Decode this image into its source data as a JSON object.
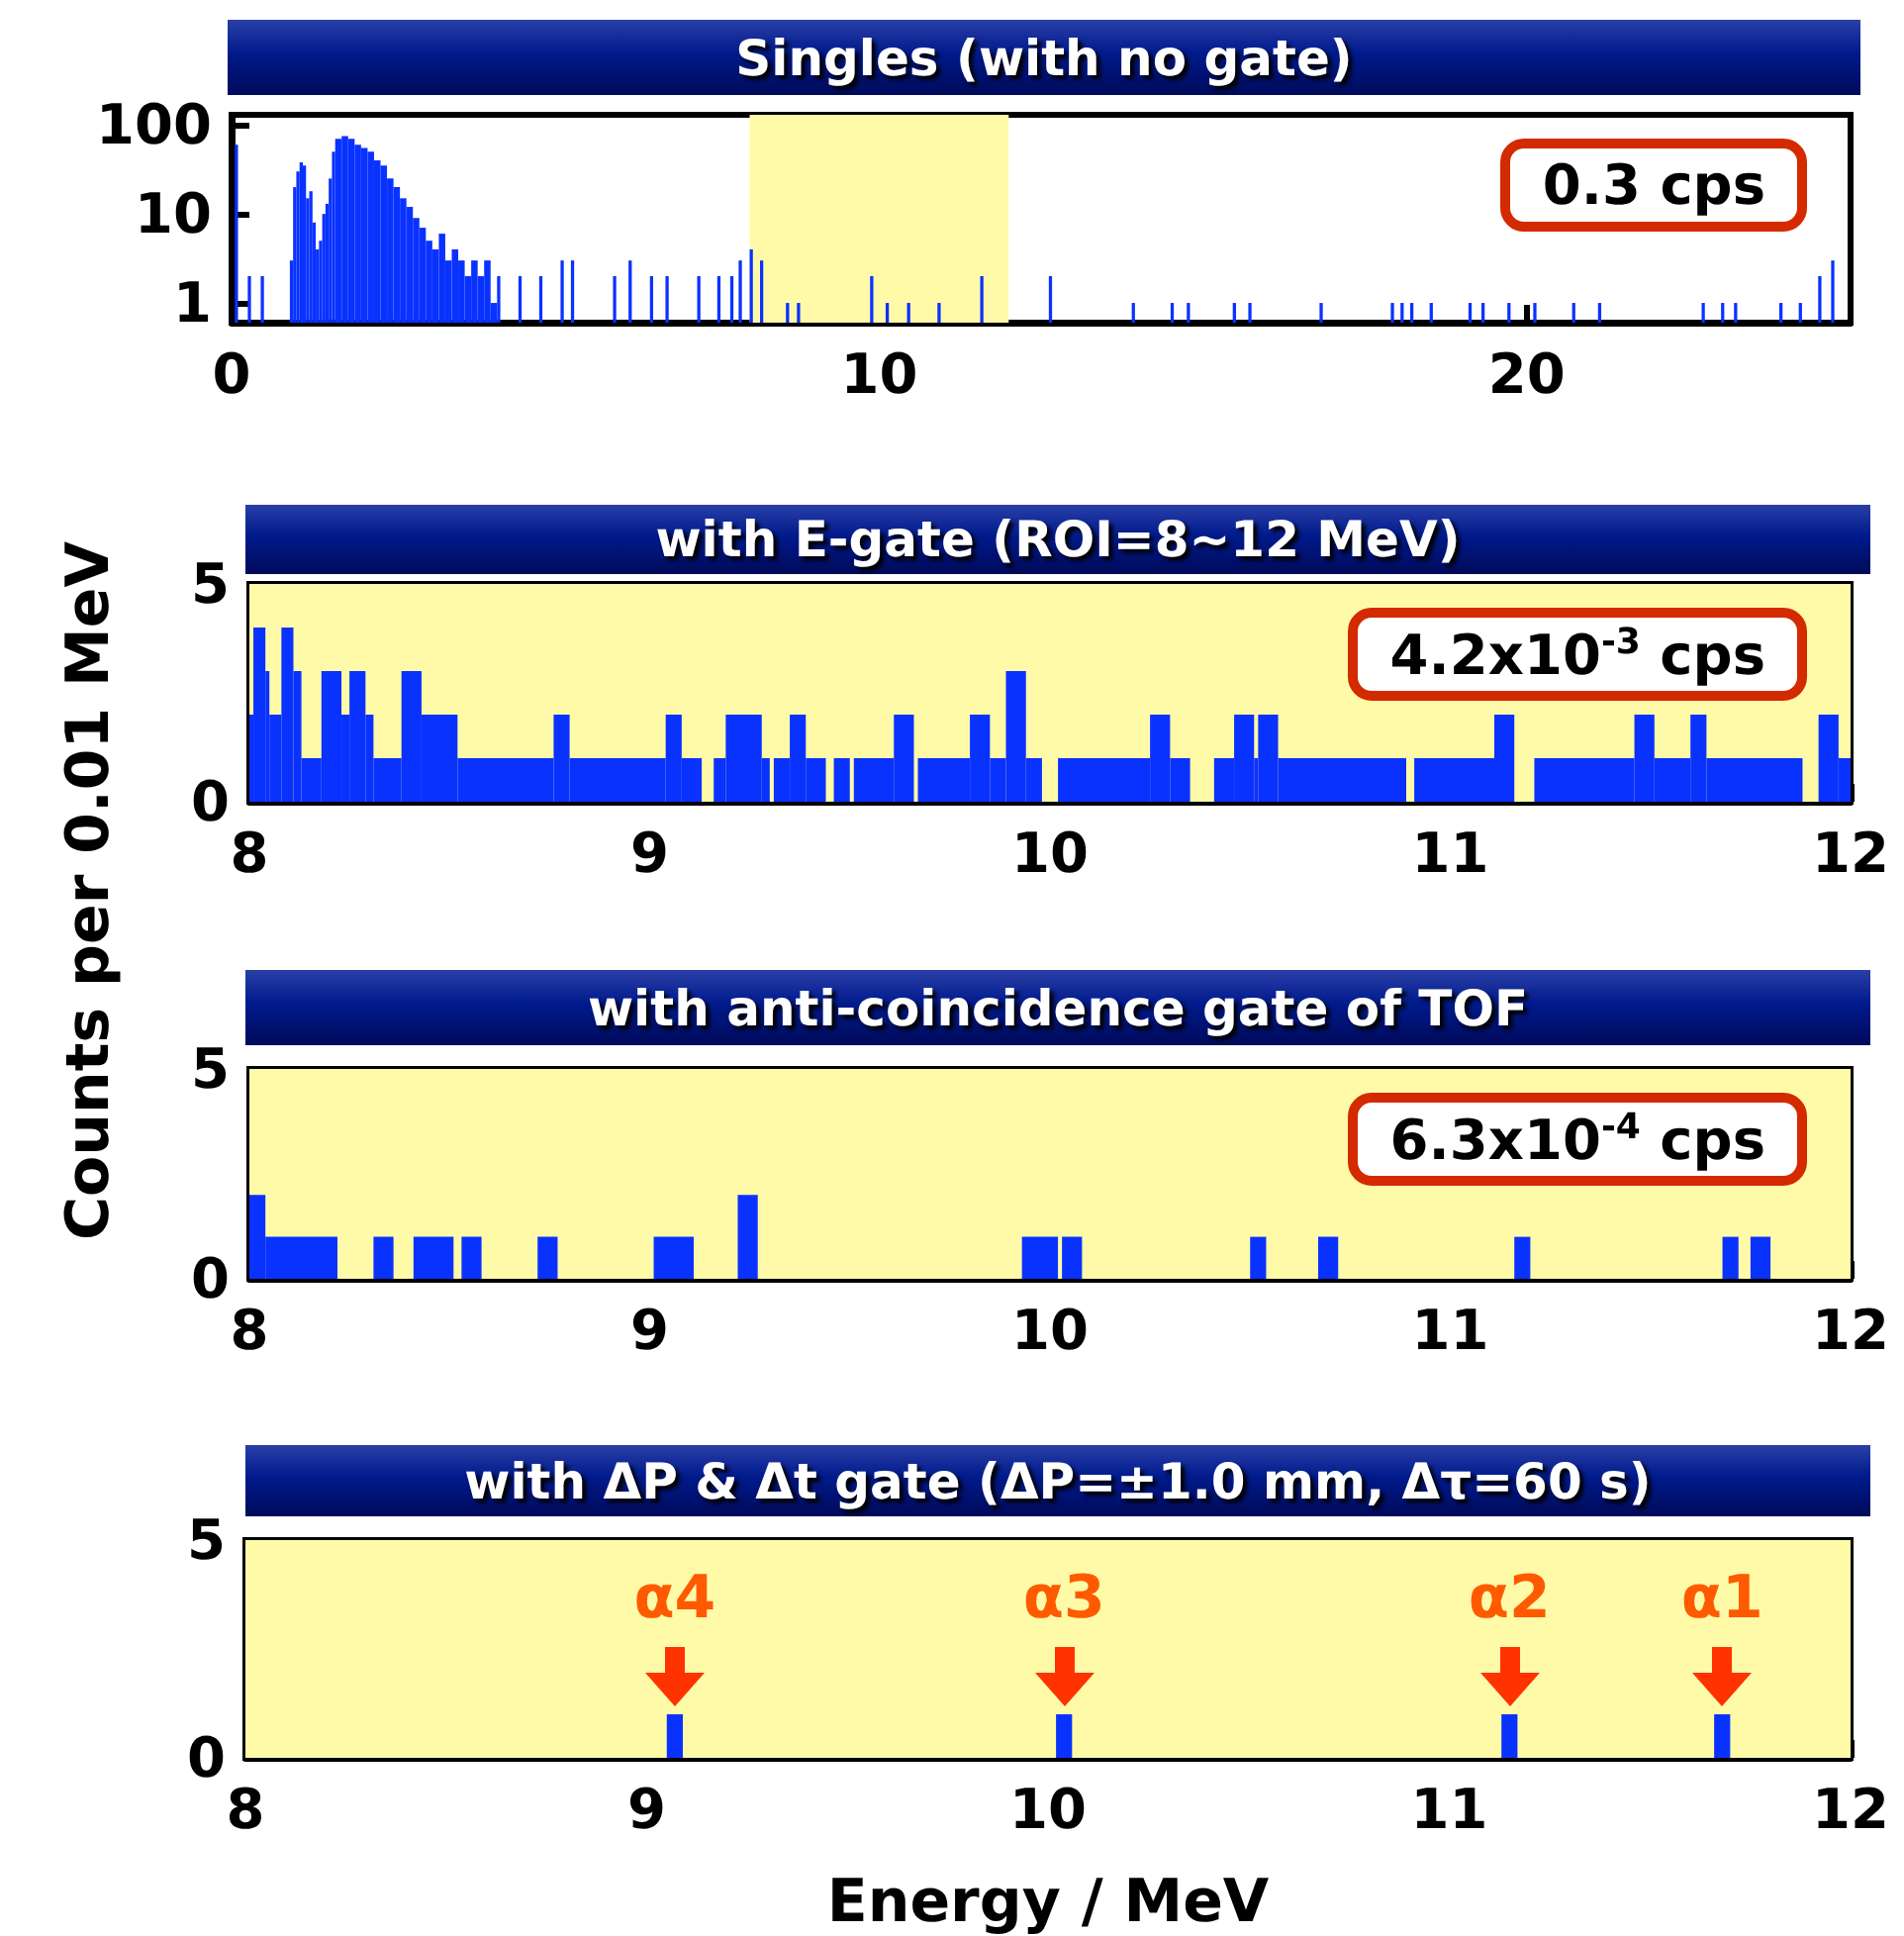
{
  "chart_data": [
    {
      "type": "histogram",
      "title": "Singles (with no gate)",
      "color": "#0a32ff",
      "log": "y",
      "xlim": [
        0,
        25
      ],
      "xticks": [
        0,
        10,
        20
      ],
      "ylim": [
        0.6,
        130
      ],
      "yticks": [
        1,
        10,
        100
      ],
      "bins": [
        0.05,
        0.1,
        0.25,
        0.3,
        0.45,
        0.5,
        0.9,
        0.95,
        1.0,
        1.05,
        1.1,
        1.15,
        1.2,
        1.25,
        1.3,
        1.35,
        1.4,
        1.45,
        1.5,
        1.55,
        1.6,
        1.7,
        1.8,
        1.9,
        2.0,
        2.1,
        2.2,
        2.3,
        2.4,
        2.5,
        2.6,
        2.7,
        2.8,
        2.9,
        3.0,
        3.1,
        3.2,
        3.3,
        3.4,
        3.5,
        3.6,
        3.7,
        3.8,
        3.9,
        4.0,
        4.1,
        4.15,
        4.43,
        4.48,
        4.75,
        4.8,
        5.08,
        5.13,
        5.24,
        5.29,
        5.89,
        5.94,
        6.13,
        6.18,
        6.46,
        6.51,
        6.7,
        6.75,
        7.19,
        7.24,
        7.5,
        7.55,
        7.7,
        7.75,
        7.83,
        7.88,
        8.0,
        8.05,
        8.16,
        8.21,
        8.56,
        8.61,
        8.73,
        8.78,
        9.86,
        9.91,
        10.1,
        10.15,
        10.43,
        10.48,
        10.9,
        10.95,
        11.56,
        11.61,
        12.62,
        12.67,
        13.9,
        13.95,
        14.5,
        14.55,
        14.75,
        14.8,
        15.46,
        15.51,
        15.7,
        15.75,
        16.8,
        16.85,
        17.9,
        17.95,
        18.05,
        18.1,
        18.2,
        18.25,
        18.5,
        18.55,
        19.1,
        19.15,
        19.3,
        19.35,
        19.7,
        19.75,
        20.1,
        20.15,
        20.7,
        20.75,
        21.1,
        21.15,
        22.7,
        22.75,
        23.0,
        23.05,
        23.2,
        23.25,
        23.9,
        23.95,
        24.2,
        24.25,
        24.5,
        24.55,
        24.7,
        24.75
      ],
      "values": [
        60,
        null,
        2,
        null,
        2,
        null,
        3,
        20,
        30,
        38,
        35,
        15,
        18,
        8,
        4,
        5,
        10,
        13,
        25,
        50,
        70,
        75,
        70,
        60,
        55,
        50,
        40,
        35,
        25,
        20,
        15,
        12,
        9,
        7,
        5,
        4,
        6,
        3,
        4,
        3,
        2,
        3,
        2,
        3,
        1,
        2,
        null,
        2,
        null,
        2,
        null,
        3,
        null,
        3,
        null,
        2,
        null,
        3,
        null,
        2,
        null,
        2,
        null,
        2,
        null,
        2,
        null,
        2,
        null,
        3,
        null,
        4,
        null,
        3,
        null,
        1,
        null,
        1,
        null,
        2,
        null,
        1,
        null,
        1,
        null,
        1,
        null,
        2,
        null,
        2,
        null,
        1,
        null,
        1,
        null,
        1,
        null,
        1,
        null,
        1,
        null,
        1,
        null,
        1,
        null,
        1,
        null,
        1,
        null,
        1,
        null,
        1,
        null,
        1,
        null,
        1,
        null,
        1,
        null,
        1,
        null,
        1,
        null,
        1,
        null,
        1,
        null,
        1,
        null,
        1,
        null,
        1,
        null,
        2,
        null,
        3
      ],
      "bands": [
        {
          "axis": "x",
          "from": 8,
          "to": 12,
          "color": "#fffaa8"
        }
      ],
      "annotations": [
        "0.3 cps"
      ]
    },
    {
      "type": "histogram",
      "title": "with E-gate (ROI=8~12 MeV)",
      "ylabel": "Counts per 0.01 MeV",
      "color": "#0a32ff",
      "xlim": [
        8,
        12
      ],
      "xticks": [
        8,
        9,
        10,
        11,
        12
      ],
      "ylim": [
        0,
        5
      ],
      "yticks": [
        0,
        5
      ],
      "bins": [
        8.0,
        8.01,
        8.04,
        8.05,
        8.08,
        8.11,
        8.13,
        8.18,
        8.23,
        8.25,
        8.29,
        8.31,
        8.38,
        8.43,
        8.52,
        8.76,
        8.8,
        9.04,
        9.08,
        9.13,
        9.16,
        9.19,
        9.28,
        9.3,
        9.31,
        9.35,
        9.39,
        9.44,
        9.46,
        9.5,
        9.51,
        9.61,
        9.66,
        9.67,
        9.8,
        9.85,
        9.89,
        9.94,
        9.98,
        10.02,
        10.25,
        10.3,
        10.35,
        10.41,
        10.46,
        10.51,
        10.52,
        10.57,
        10.89,
        10.91,
        11.11,
        11.16,
        11.21,
        11.46,
        11.51,
        11.6,
        11.64,
        11.88,
        11.92,
        11.97,
        12.0
      ],
      "values": [
        2,
        4,
        3,
        2,
        4,
        3,
        1,
        3,
        2,
        3,
        2,
        1,
        3,
        2,
        1,
        2,
        1,
        2,
        1,
        0,
        1,
        2,
        1,
        0,
        1,
        2,
        1,
        0,
        1,
        0,
        1,
        2,
        0,
        1,
        2,
        1,
        3,
        1,
        0,
        1,
        2,
        1,
        0,
        1,
        2,
        1,
        2,
        1,
        0,
        1,
        2,
        0,
        1,
        2,
        1,
        2,
        1,
        0,
        2,
        1
      ],
      "bands": [
        {
          "axis": "x",
          "from": 8,
          "to": 12,
          "color": "#fffaa8"
        }
      ],
      "annotations": [
        "4.2x10$^{-3}$ cps"
      ]
    },
    {
      "type": "histogram",
      "title": "with anti-coincidence gate of TOF",
      "color": "#0a32ff",
      "xlim": [
        8,
        12
      ],
      "xticks": [
        8,
        9,
        10,
        11,
        12
      ],
      "ylim": [
        0,
        5
      ],
      "yticks": [
        0,
        5
      ],
      "bins": [
        8.0,
        8.04,
        8.22,
        8.31,
        8.36,
        8.41,
        8.51,
        8.53,
        8.58,
        8.72,
        8.77,
        9.01,
        9.11,
        9.22,
        9.27,
        9.93,
        10.02,
        10.03,
        10.08,
        10.5,
        10.54,
        10.67,
        10.72,
        11.16,
        11.2,
        11.68,
        11.72,
        11.75,
        11.8
      ],
      "values": [
        2,
        1,
        0,
        1,
        0,
        1,
        0,
        1,
        0,
        1,
        0,
        1,
        0,
        2,
        0,
        1,
        0,
        1,
        0,
        1,
        0,
        1,
        0,
        1,
        0,
        1,
        0,
        1
      ],
      "bands": [
        {
          "axis": "x",
          "from": 8,
          "to": 12,
          "color": "#fffaa8"
        }
      ],
      "annotations": [
        "6.3x10$^{-4}$ cps"
      ]
    },
    {
      "type": "histogram",
      "title": "with ΔP & Δt gate (ΔP=±1.0 mm, Δτ=60 s)",
      "xlabel": "Energy / MeV",
      "color": "#0a32ff",
      "xlim": [
        8,
        12
      ],
      "xticks": [
        8,
        9,
        10,
        11,
        12
      ],
      "ylim": [
        0,
        5
      ],
      "yticks": [
        0,
        5
      ],
      "bins": [
        9.05,
        9.09,
        10.02,
        10.06,
        11.13,
        11.17,
        11.66,
        11.7
      ],
      "values": [
        1,
        0,
        1,
        0,
        1,
        0,
        1
      ],
      "bands": [
        {
          "axis": "x",
          "from": 8,
          "to": 12,
          "color": "#fffaa8"
        }
      ],
      "annotations": [
        {
          "text": "α4",
          "x": 9.07,
          "y": 1
        },
        {
          "text": "α3",
          "x": 10.04,
          "y": 1
        },
        {
          "text": "α2",
          "x": 11.15,
          "y": 1
        },
        {
          "text": "α1",
          "x": 11.68,
          "y": 1
        }
      ]
    }
  ]
}
